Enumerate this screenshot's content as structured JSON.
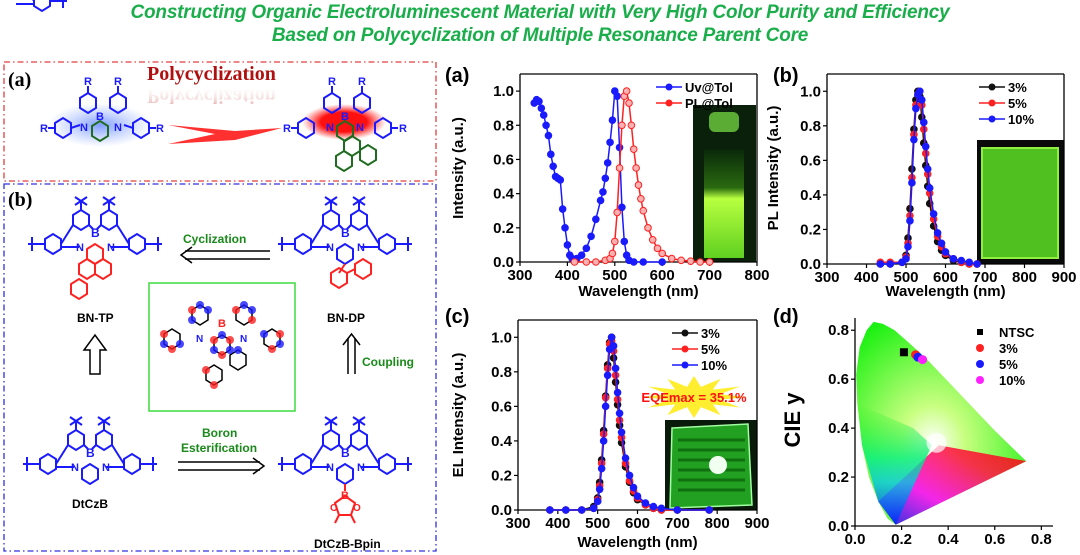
{
  "title": {
    "line1": "Constructing Organic Electroluminescent Material with Very High Color Purity and Efficiency",
    "line2": "Based on Polycyclization of Multiple Resonance Parent Core"
  },
  "scheme_a": {
    "panel_label": "(a)",
    "heading": "Polycyclization",
    "substituent": "R",
    "atoms": {
      "boron": "B",
      "nitrogen": "N"
    }
  },
  "scheme_b": {
    "panel_label": "(b)",
    "compounds": {
      "bn_tp": "BN-TP",
      "bn_dp": "BN-DP",
      "dtczb": "DtCzB",
      "dtczb_bpin": "DtCzB-Bpin"
    },
    "reactions": {
      "cyclization": "Cyclization",
      "coupling": "Coupling",
      "boron_esterification_1": "Boron",
      "boron_esterification_2": "Esterification"
    },
    "atoms": {
      "boron": "B",
      "nitrogen": "N",
      "oxygen": "O"
    }
  },
  "colors": {
    "title_green": "#1aae4a",
    "blue": "#1a1aff",
    "red": "#ff2020",
    "dark_green": "#1f6b1f",
    "reaction_green": "#1a8a1a",
    "panel_a_border": "#e04040",
    "panel_b_border": "#3030e0"
  },
  "chart_data": [
    {
      "panel_label": "(a)",
      "type": "line",
      "xlabel": "Wavelength (nm)",
      "ylabel": "Intensity (a.u.)",
      "xlim": [
        300,
        800
      ],
      "ylim": [
        0,
        1.1
      ],
      "xticks": [
        "300",
        "400",
        "500",
        "600",
        "700",
        "800"
      ],
      "yticks": [
        "0.0",
        "0.2",
        "0.4",
        "0.6",
        "0.8",
        "1.0"
      ],
      "legend": "top-right",
      "inset": "cuvette-photo",
      "series": [
        {
          "name": "Uv@Tol",
          "color": "#1a1aff",
          "x": [
            330,
            335,
            340,
            345,
            350,
            355,
            360,
            365,
            370,
            375,
            380,
            385,
            390,
            395,
            400,
            405,
            410,
            415,
            420,
            430,
            440,
            450,
            460,
            470,
            475,
            480,
            485,
            490,
            495,
            500,
            505,
            510,
            515,
            520,
            525,
            530,
            540,
            560,
            600
          ],
          "y": [
            0.93,
            0.95,
            0.94,
            0.9,
            0.86,
            0.8,
            0.74,
            0.63,
            0.56,
            0.5,
            0.49,
            0.48,
            0.31,
            0.2,
            0.1,
            0.04,
            0.02,
            0.01,
            0.02,
            0.04,
            0.08,
            0.15,
            0.25,
            0.36,
            0.41,
            0.49,
            0.58,
            0.7,
            0.83,
            1.0,
            0.97,
            0.67,
            0.32,
            0.12,
            0.04,
            0.01,
            0.0,
            0.0,
            0.0
          ]
        },
        {
          "name": "PL@Tol",
          "color": "#ff2020",
          "x": [
            415,
            440,
            460,
            480,
            490,
            495,
            500,
            505,
            510,
            515,
            520,
            525,
            530,
            535,
            540,
            545,
            550,
            555,
            560,
            570,
            580,
            590,
            600,
            620,
            640,
            660,
            680,
            700
          ],
          "y": [
            0.0,
            0.0,
            0.0,
            0.01,
            0.02,
            0.05,
            0.12,
            0.29,
            0.55,
            0.8,
            0.97,
            1.0,
            0.93,
            0.8,
            0.66,
            0.55,
            0.45,
            0.37,
            0.3,
            0.2,
            0.13,
            0.08,
            0.05,
            0.02,
            0.01,
            0.005,
            0.0,
            0.0
          ]
        }
      ]
    },
    {
      "panel_label": "(b)",
      "type": "line",
      "xlabel": "Wavelength (nm)",
      "ylabel": "PL Intensity (a.u.)",
      "xlim": [
        300,
        900
      ],
      "ylim": [
        0,
        1.1
      ],
      "xticks": [
        "300",
        "400",
        "500",
        "600",
        "700",
        "800",
        "900"
      ],
      "yticks": [
        "0.0",
        "0.2",
        "0.4",
        "0.6",
        "0.8",
        "1.0"
      ],
      "legend": "top-right",
      "inset": "film-photo",
      "series": [
        {
          "name": "3%",
          "color": "#111111",
          "x": [
            435,
            460,
            490,
            500,
            505,
            510,
            515,
            520,
            525,
            530,
            535,
            540,
            545,
            550,
            555,
            560,
            570,
            580,
            590,
            600,
            620,
            640,
            660,
            680
          ],
          "y": [
            0.0,
            0.0,
            0.01,
            0.05,
            0.15,
            0.32,
            0.55,
            0.78,
            0.95,
            1.0,
            0.97,
            0.85,
            0.7,
            0.57,
            0.45,
            0.35,
            0.22,
            0.13,
            0.08,
            0.05,
            0.02,
            0.01,
            0.0,
            0.0
          ]
        },
        {
          "name": "5%",
          "color": "#ff2020",
          "x": [
            435,
            460,
            490,
            500,
            505,
            510,
            515,
            520,
            525,
            530,
            535,
            540,
            545,
            550,
            555,
            560,
            570,
            580,
            590,
            600,
            620,
            640,
            660,
            680
          ],
          "y": [
            0.01,
            0.01,
            0.01,
            0.04,
            0.12,
            0.28,
            0.5,
            0.75,
            0.92,
            0.98,
            1.0,
            0.92,
            0.78,
            0.64,
            0.52,
            0.41,
            0.26,
            0.16,
            0.1,
            0.06,
            0.03,
            0.01,
            0.0,
            0.0
          ]
        },
        {
          "name": "10%",
          "color": "#1a1aff",
          "x": [
            435,
            460,
            490,
            500,
            505,
            510,
            515,
            520,
            525,
            530,
            535,
            540,
            545,
            550,
            555,
            560,
            570,
            580,
            590,
            600,
            620,
            640,
            660,
            680
          ],
          "y": [
            0.0,
            0.0,
            0.01,
            0.03,
            0.1,
            0.25,
            0.47,
            0.72,
            0.9,
            0.98,
            1.0,
            0.95,
            0.82,
            0.68,
            0.55,
            0.44,
            0.29,
            0.18,
            0.12,
            0.07,
            0.03,
            0.02,
            0.01,
            0.0
          ]
        }
      ]
    },
    {
      "panel_label": "(c)",
      "type": "line",
      "xlabel": "Wavelength (nm)",
      "ylabel": "EL Intensity (a.u.)",
      "xlim": [
        300,
        900
      ],
      "ylim": [
        0,
        1.1
      ],
      "xticks": [
        "300",
        "400",
        "500",
        "600",
        "700",
        "800",
        "900"
      ],
      "yticks": [
        "0.0",
        "0.2",
        "0.4",
        "0.6",
        "0.8",
        "1.0"
      ],
      "legend": "top-right",
      "inset": "device-photo",
      "annotation": "EQEmax = 35.1%",
      "series": [
        {
          "name": "3%",
          "color": "#111111",
          "x": [
            380,
            420,
            460,
            490,
            500,
            505,
            510,
            515,
            520,
            525,
            530,
            535,
            540,
            545,
            550,
            555,
            560,
            570,
            580,
            590,
            600,
            620,
            640,
            660,
            700,
            780
          ],
          "y": [
            0.0,
            0.0,
            0.0,
            0.02,
            0.07,
            0.16,
            0.29,
            0.46,
            0.66,
            0.84,
            0.97,
            1.0,
            0.88,
            0.74,
            0.61,
            0.49,
            0.39,
            0.25,
            0.16,
            0.1,
            0.06,
            0.03,
            0.01,
            0.0,
            0.0,
            0.0
          ]
        },
        {
          "name": "5%",
          "color": "#ff2020",
          "x": [
            380,
            420,
            460,
            490,
            500,
            505,
            510,
            515,
            520,
            525,
            530,
            535,
            540,
            545,
            550,
            555,
            560,
            570,
            580,
            590,
            600,
            620,
            640,
            660,
            700,
            780
          ],
          "y": [
            0.0,
            0.0,
            0.0,
            0.01,
            0.06,
            0.14,
            0.27,
            0.44,
            0.65,
            0.82,
            0.96,
            0.98,
            0.92,
            0.78,
            0.64,
            0.52,
            0.42,
            0.27,
            0.17,
            0.11,
            0.07,
            0.03,
            0.01,
            0.0,
            0.0,
            0.0
          ]
        },
        {
          "name": "10%",
          "color": "#1a1aff",
          "x": [
            380,
            420,
            460,
            490,
            500,
            505,
            510,
            515,
            520,
            525,
            530,
            535,
            540,
            545,
            550,
            555,
            560,
            570,
            580,
            590,
            600,
            620,
            640,
            660,
            700,
            780
          ],
          "y": [
            0.0,
            0.0,
            0.0,
            0.01,
            0.05,
            0.12,
            0.24,
            0.4,
            0.6,
            0.78,
            0.93,
            1.0,
            0.95,
            0.82,
            0.68,
            0.56,
            0.45,
            0.3,
            0.2,
            0.13,
            0.08,
            0.04,
            0.02,
            0.01,
            0.0,
            0.0
          ]
        }
      ]
    },
    {
      "panel_label": "(d)",
      "type": "scatter",
      "xlabel": "",
      "ylabel": "CIE y",
      "xlim": [
        0,
        0.85
      ],
      "ylim": [
        0,
        0.85
      ],
      "xticks": [
        "0.0",
        "0.2",
        "0.4",
        "0.6",
        "0.8"
      ],
      "yticks": [
        "0.0",
        "0.2",
        "0.4",
        "0.6",
        "0.8"
      ],
      "legend": "top-right",
      "background": "CIE 1931 chromaticity diagram",
      "series": [
        {
          "name": "NTSC",
          "color": "#000000",
          "marker": "square",
          "x": [
            0.21
          ],
          "y": [
            0.71
          ]
        },
        {
          "name": "3%",
          "color": "#ff2020",
          "marker": "circle",
          "x": [
            0.26
          ],
          "y": [
            0.7
          ]
        },
        {
          "name": "5%",
          "color": "#1a1aff",
          "marker": "circle",
          "x": [
            0.27
          ],
          "y": [
            0.69
          ]
        },
        {
          "name": "10%",
          "color": "#ff20ff",
          "marker": "circle",
          "x": [
            0.29
          ],
          "y": [
            0.68
          ]
        }
      ]
    }
  ]
}
